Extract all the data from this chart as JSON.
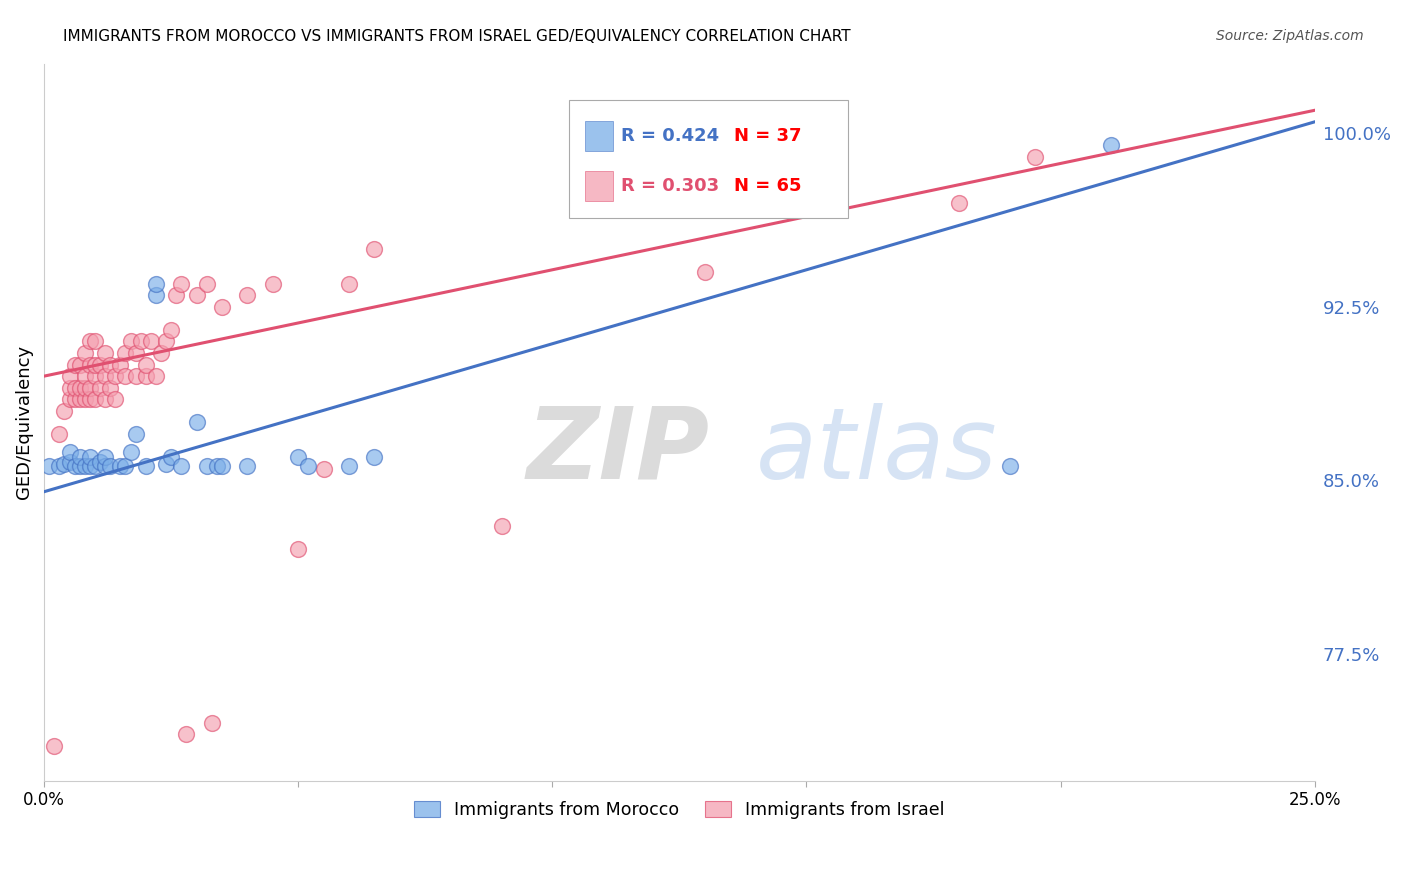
{
  "title": "IMMIGRANTS FROM MOROCCO VS IMMIGRANTS FROM ISRAEL GED/EQUIVALENCY CORRELATION CHART",
  "source": "Source: ZipAtlas.com",
  "ylabel": "GED/Equivalency",
  "ytick_labels": [
    "100.0%",
    "92.5%",
    "85.0%",
    "77.5%"
  ],
  "ytick_values": [
    1.0,
    0.925,
    0.85,
    0.775
  ],
  "xlim": [
    0.0,
    0.25
  ],
  "ylim": [
    0.72,
    1.03
  ],
  "blue_R": "0.424",
  "blue_N": "37",
  "pink_R": "0.303",
  "pink_N": "65",
  "blue_color": "#7aaee8",
  "pink_color": "#f4a0b0",
  "blue_line_color": "#4472C4",
  "pink_line_color": "#E05070",
  "blue_N_color": "#FF0000",
  "pink_N_color": "#FF0000",
  "watermark": "ZIPatlas",
  "blue_line_x0": 0.0,
  "blue_line_y0": 0.845,
  "blue_line_x1": 0.25,
  "blue_line_y1": 1.005,
  "pink_line_x0": 0.0,
  "pink_line_y0": 0.895,
  "pink_line_x1": 0.25,
  "pink_line_y1": 1.01,
  "blue_scatter_x": [
    0.001,
    0.003,
    0.004,
    0.005,
    0.005,
    0.006,
    0.007,
    0.007,
    0.008,
    0.009,
    0.009,
    0.01,
    0.011,
    0.012,
    0.012,
    0.013,
    0.015,
    0.016,
    0.017,
    0.018,
    0.02,
    0.022,
    0.022,
    0.024,
    0.025,
    0.027,
    0.03,
    0.032,
    0.034,
    0.035,
    0.04,
    0.05,
    0.052,
    0.06,
    0.065,
    0.19,
    0.21
  ],
  "blue_scatter_y": [
    0.856,
    0.856,
    0.857,
    0.858,
    0.862,
    0.856,
    0.856,
    0.86,
    0.856,
    0.856,
    0.86,
    0.856,
    0.858,
    0.856,
    0.86,
    0.856,
    0.856,
    0.856,
    0.862,
    0.87,
    0.856,
    0.93,
    0.935,
    0.857,
    0.86,
    0.856,
    0.875,
    0.856,
    0.856,
    0.856,
    0.856,
    0.86,
    0.856,
    0.856,
    0.86,
    0.856,
    0.995
  ],
  "pink_scatter_x": [
    0.002,
    0.003,
    0.004,
    0.005,
    0.005,
    0.005,
    0.006,
    0.006,
    0.006,
    0.007,
    0.007,
    0.007,
    0.008,
    0.008,
    0.008,
    0.008,
    0.009,
    0.009,
    0.009,
    0.009,
    0.01,
    0.01,
    0.01,
    0.01,
    0.011,
    0.011,
    0.012,
    0.012,
    0.012,
    0.013,
    0.013,
    0.014,
    0.014,
    0.015,
    0.016,
    0.016,
    0.017,
    0.018,
    0.018,
    0.019,
    0.02,
    0.02,
    0.021,
    0.022,
    0.023,
    0.024,
    0.025,
    0.026,
    0.027,
    0.028,
    0.03,
    0.032,
    0.033,
    0.035,
    0.04,
    0.045,
    0.05,
    0.055,
    0.06,
    0.065,
    0.09,
    0.11,
    0.13,
    0.18,
    0.195
  ],
  "pink_scatter_y": [
    0.735,
    0.87,
    0.88,
    0.885,
    0.89,
    0.895,
    0.885,
    0.89,
    0.9,
    0.885,
    0.89,
    0.9,
    0.885,
    0.89,
    0.895,
    0.905,
    0.885,
    0.89,
    0.9,
    0.91,
    0.885,
    0.895,
    0.9,
    0.91,
    0.89,
    0.9,
    0.885,
    0.895,
    0.905,
    0.89,
    0.9,
    0.885,
    0.895,
    0.9,
    0.895,
    0.905,
    0.91,
    0.895,
    0.905,
    0.91,
    0.895,
    0.9,
    0.91,
    0.895,
    0.905,
    0.91,
    0.915,
    0.93,
    0.935,
    0.74,
    0.93,
    0.935,
    0.745,
    0.925,
    0.93,
    0.935,
    0.82,
    0.855,
    0.935,
    0.95,
    0.83,
    0.975,
    0.94,
    0.97,
    0.99
  ]
}
